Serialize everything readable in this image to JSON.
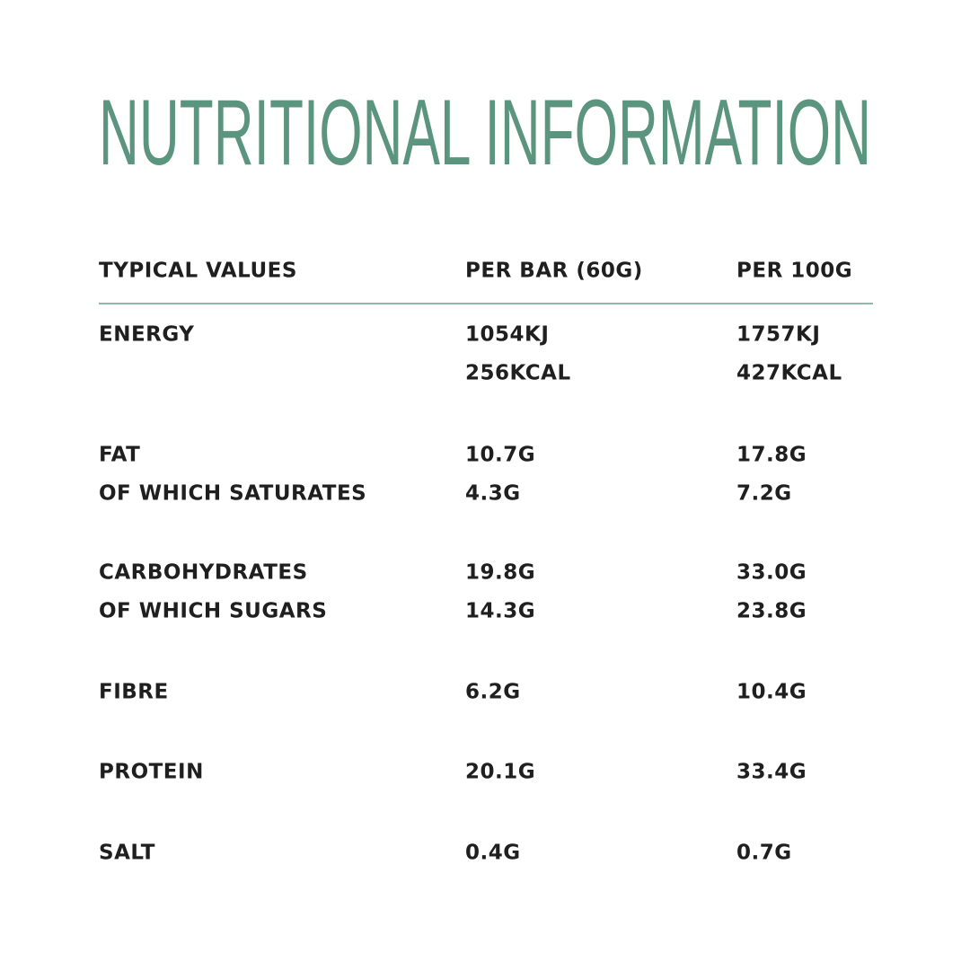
{
  "title": "NUTRITIONAL INFORMATION",
  "table": {
    "header": [
      "TYPICAL VALUES",
      "PER BAR (60G)",
      "PER 100G"
    ],
    "groups": [
      [
        [
          "ENERGY",
          "1054KJ",
          "1757KJ"
        ],
        [
          null,
          "256KCAL",
          "427KCAL"
        ]
      ],
      [
        [
          "FAT",
          "10.7G",
          "17.8G"
        ],
        [
          "OF WHICH SATURATES",
          "4.3G",
          "7.2G"
        ]
      ],
      [
        [
          "CARBOHYDRATES",
          "19.8G",
          "33.0G"
        ],
        [
          "OF WHICH SUGARS",
          "14.3G",
          "23.8G"
        ]
      ],
      [
        [
          "FIBRE",
          "6.2G",
          "10.4G"
        ]
      ],
      [
        [
          "PROTEIN",
          "20.1G",
          "33.4G"
        ]
      ],
      [
        [
          "SALT",
          "0.4G",
          "0.7G"
        ]
      ]
    ]
  }
}
